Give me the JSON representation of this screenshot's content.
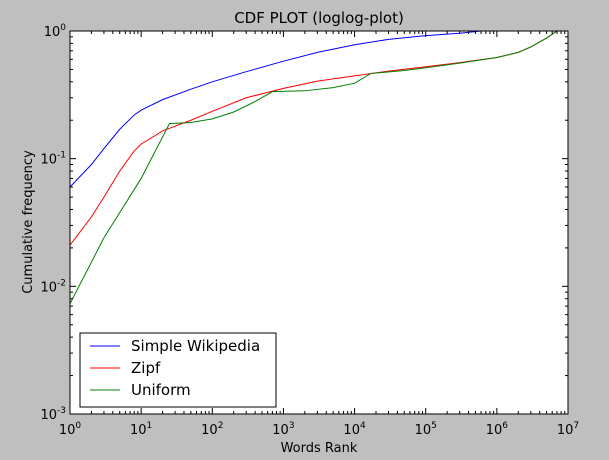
{
  "chart_data": {
    "type": "line",
    "title": "CDF PLOT (loglog-plot)",
    "xlabel": "Words Rank",
    "ylabel": "Cumulative frequency",
    "xscale": "log",
    "yscale": "log",
    "xlim": [
      1,
      10000000
    ],
    "ylim": [
      0.001,
      1
    ],
    "x_tick_labels": [
      {
        "base": "10",
        "exp": "0"
      },
      {
        "base": "10",
        "exp": "1"
      },
      {
        "base": "10",
        "exp": "2"
      },
      {
        "base": "10",
        "exp": "3"
      },
      {
        "base": "10",
        "exp": "4"
      },
      {
        "base": "10",
        "exp": "5"
      },
      {
        "base": "10",
        "exp": "6"
      },
      {
        "base": "10",
        "exp": "7"
      }
    ],
    "y_tick_labels": [
      {
        "base": "10",
        "exp": "-3"
      },
      {
        "base": "10",
        "exp": "-2"
      },
      {
        "base": "10",
        "exp": "-1"
      },
      {
        "base": "10",
        "exp": "0"
      }
    ],
    "grid": false,
    "legend_position": "lower-left",
    "series": [
      {
        "name": "Simple Wikipedia",
        "color": "#0000ff",
        "x": [
          1,
          2,
          3,
          5,
          8,
          10,
          20,
          50,
          100,
          300,
          1000,
          3000,
          10000,
          30000,
          100000,
          300000,
          600000
        ],
        "y": [
          0.06,
          0.09,
          0.12,
          0.17,
          0.22,
          0.24,
          0.29,
          0.35,
          0.4,
          0.48,
          0.58,
          0.68,
          0.78,
          0.86,
          0.92,
          0.96,
          1.0
        ]
      },
      {
        "name": "Zipf",
        "color": "#ff0000",
        "x": [
          1,
          2,
          3,
          5,
          8,
          10,
          20,
          50,
          100,
          300,
          1000,
          3000,
          10000,
          30000,
          100000,
          300000,
          1000000,
          2000000,
          3000000,
          5000000,
          7000000
        ],
        "y": [
          0.021,
          0.035,
          0.05,
          0.08,
          0.115,
          0.13,
          0.165,
          0.2,
          0.235,
          0.3,
          0.355,
          0.405,
          0.445,
          0.485,
          0.525,
          0.565,
          0.62,
          0.68,
          0.75,
          0.88,
          1.0
        ]
      },
      {
        "name": "Uniform",
        "color": "#008000",
        "x": [
          1,
          3,
          10,
          25,
          50,
          100,
          200,
          400,
          700,
          2000,
          5000,
          10000,
          17000,
          50000,
          100000,
          300000,
          1000000,
          2000000,
          3000000,
          5000000,
          7000000
        ],
        "y": [
          0.0073,
          0.024,
          0.07,
          0.188,
          0.192,
          0.205,
          0.232,
          0.28,
          0.335,
          0.34,
          0.36,
          0.39,
          0.465,
          0.49,
          0.515,
          0.56,
          0.62,
          0.68,
          0.75,
          0.88,
          1.0
        ]
      }
    ]
  }
}
